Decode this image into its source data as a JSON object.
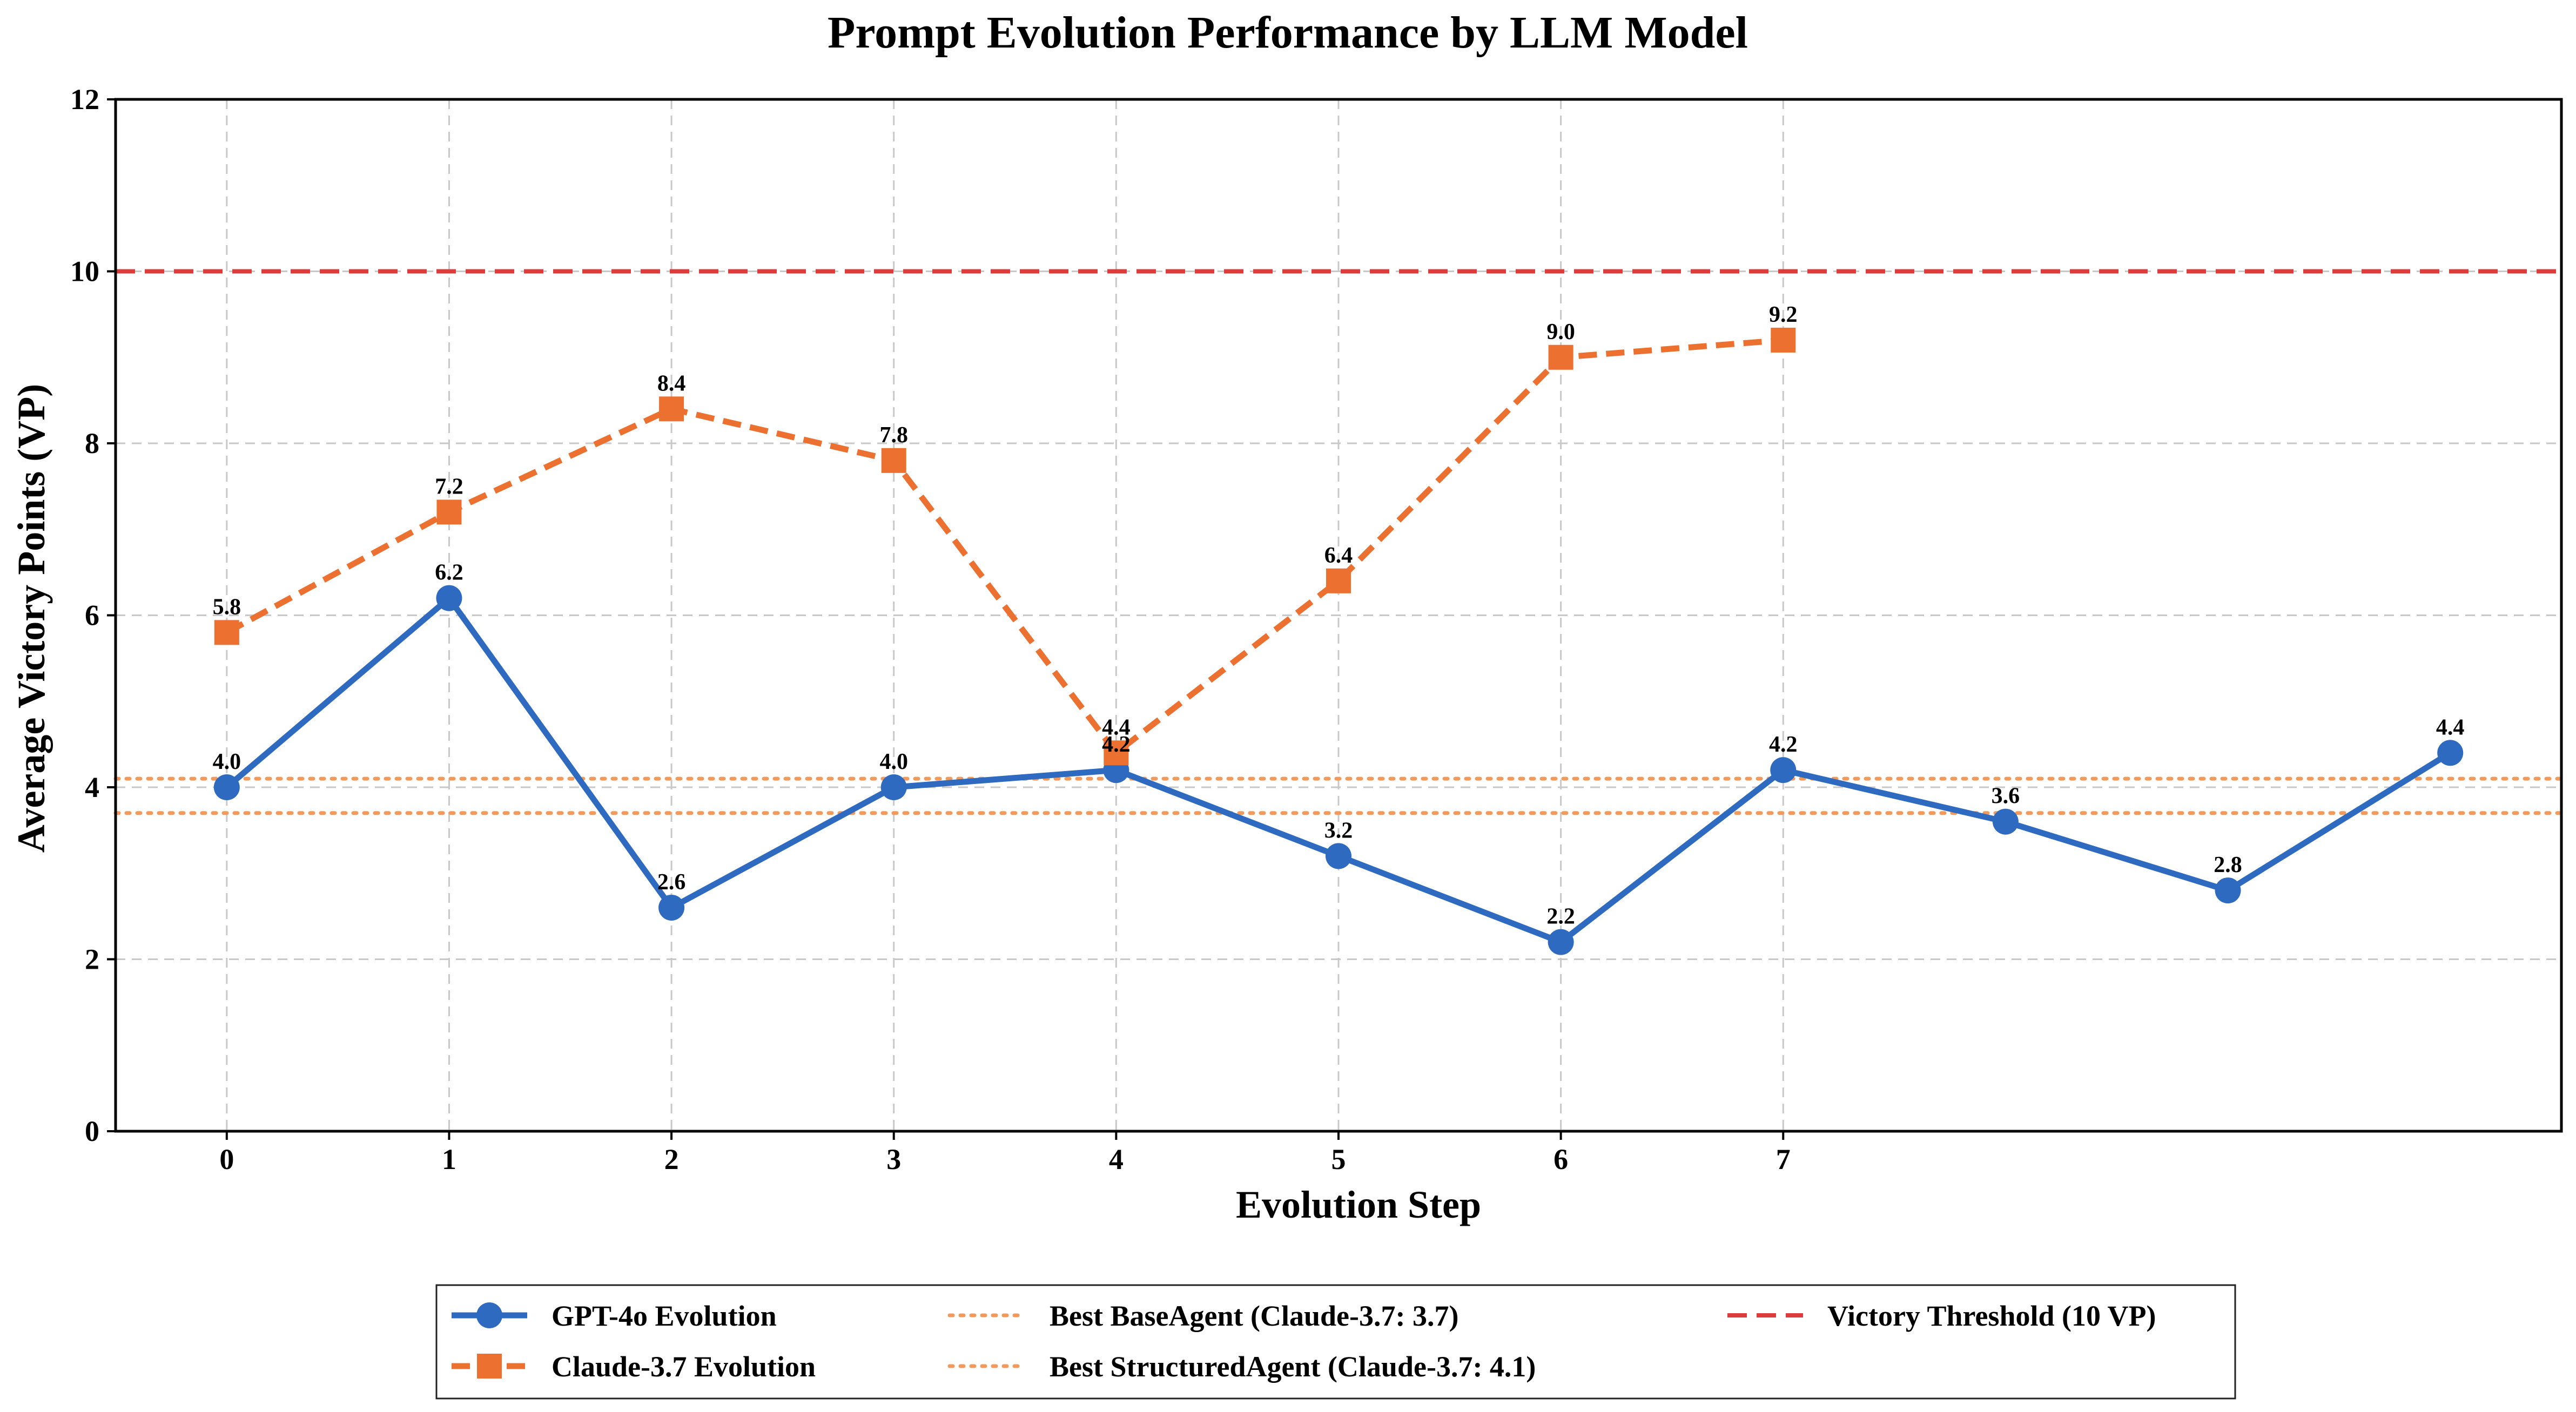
{
  "chart_data": {
    "type": "line",
    "title": "Prompt Evolution Performance by LLM Model",
    "xlabel": "Evolution Step",
    "ylabel": "Average Victory Points (VP)",
    "xlim": [
      -0.5,
      10.5
    ],
    "ylim": [
      0,
      12
    ],
    "x_ticks": [
      0,
      1,
      2,
      3,
      4,
      5,
      6,
      7
    ],
    "y_ticks": [
      0,
      2,
      4,
      6,
      8,
      10,
      12
    ],
    "grid": true,
    "legend_placement": "bottom-center",
    "series": [
      {
        "name": "GPT-4o Evolution",
        "color": "#2e6bc0",
        "marker": "circle",
        "line_style": "solid",
        "x": [
          0,
          1,
          2,
          3,
          4,
          5,
          6,
          7,
          8,
          9,
          10
        ],
        "values": [
          4.0,
          6.2,
          2.6,
          4.0,
          4.2,
          3.2,
          2.2,
          4.2,
          3.6,
          2.8,
          4.4
        ],
        "labels": [
          "4.0",
          "6.2",
          "2.6",
          "4.0",
          "4.2",
          "3.2",
          "2.2",
          "4.2",
          "3.6",
          "2.8",
          "4.4"
        ]
      },
      {
        "name": "Claude-3.7 Evolution",
        "color": "#ec7030",
        "marker": "square",
        "line_style": "dashed",
        "x": [
          0,
          1,
          2,
          3,
          4,
          5,
          6,
          7
        ],
        "values": [
          5.8,
          7.2,
          8.4,
          7.8,
          4.4,
          6.4,
          9.0,
          9.2
        ],
        "labels": [
          "5.8",
          "7.2",
          "8.4",
          "7.8",
          "4.4",
          "6.4",
          "9.0",
          "9.2"
        ]
      }
    ],
    "reference_lines": [
      {
        "name": "Best BaseAgent (Claude-3.7: 3.7)",
        "value": 3.7,
        "color": "#f29a5c",
        "line_style": "dotted"
      },
      {
        "name": "Best StructuredAgent (Claude-3.7: 4.1)",
        "value": 4.1,
        "color": "#f29a5c",
        "line_style": "dotted"
      },
      {
        "name": "Victory Threshold (10 VP)",
        "value": 10,
        "color": "#dc3c3c",
        "line_style": "dashed"
      }
    ]
  }
}
